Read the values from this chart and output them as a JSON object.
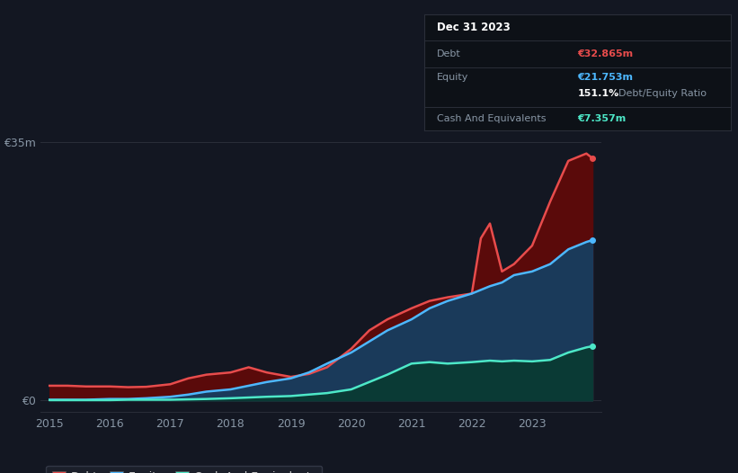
{
  "background_color": "#131722",
  "plot_bg_color": "#131722",
  "grid_color": "#2a2e39",
  "title_box": {
    "date": "Dec 31 2023",
    "debt_label": "Debt",
    "debt_value": "€32.865m",
    "equity_label": "Equity",
    "equity_value": "€21.753m",
    "ratio_text": "151.1% Debt/Equity Ratio",
    "cash_label": "Cash And Equivalents",
    "cash_value": "€7.357m",
    "debt_color": "#e84c4c",
    "equity_color": "#4db8ff",
    "cash_color": "#4de8c8",
    "label_color": "#8896a5",
    "date_color": "#ffffff",
    "ratio_color_bold": "#ffffff",
    "ratio_color_normal": "#8896a5",
    "box_bg": "#0d1117",
    "box_border": "#2a2e39"
  },
  "years": [
    2015.0,
    2015.3,
    2015.6,
    2016.0,
    2016.3,
    2016.6,
    2017.0,
    2017.3,
    2017.6,
    2018.0,
    2018.3,
    2018.6,
    2019.0,
    2019.3,
    2019.6,
    2020.0,
    2020.3,
    2020.6,
    2021.0,
    2021.3,
    2021.6,
    2022.0,
    2022.15,
    2022.3,
    2022.5,
    2022.7,
    2023.0,
    2023.3,
    2023.6,
    2023.9,
    2024.0
  ],
  "debt": [
    2.0,
    2.0,
    1.9,
    1.9,
    1.8,
    1.85,
    2.2,
    3.0,
    3.5,
    3.8,
    4.5,
    3.8,
    3.2,
    3.6,
    4.5,
    7.0,
    9.5,
    11.0,
    12.5,
    13.5,
    14.0,
    14.5,
    22.0,
    24.0,
    17.5,
    18.5,
    21.0,
    27.0,
    32.5,
    33.5,
    32.865
  ],
  "equity": [
    0.1,
    0.1,
    0.1,
    0.2,
    0.2,
    0.3,
    0.5,
    0.8,
    1.2,
    1.5,
    2.0,
    2.5,
    3.0,
    3.8,
    5.0,
    6.5,
    8.0,
    9.5,
    11.0,
    12.5,
    13.5,
    14.5,
    15.0,
    15.5,
    16.0,
    17.0,
    17.5,
    18.5,
    20.5,
    21.5,
    21.753
  ],
  "cash": [
    0.05,
    0.05,
    0.05,
    0.05,
    0.1,
    0.1,
    0.1,
    0.15,
    0.2,
    0.3,
    0.4,
    0.5,
    0.6,
    0.8,
    1.0,
    1.5,
    2.5,
    3.5,
    5.0,
    5.2,
    5.0,
    5.2,
    5.3,
    5.4,
    5.3,
    5.4,
    5.3,
    5.5,
    6.5,
    7.2,
    7.357
  ],
  "debt_color": "#e84c4c",
  "equity_color": "#4db8ff",
  "cash_color": "#4de8c8",
  "debt_fill": "#5a0a0a",
  "equity_fill": "#1a3a5a",
  "cash_fill": "#0a3a35",
  "ylim": [
    -1.5,
    37
  ],
  "ytick_labels": [
    "€0",
    "€35m"
  ],
  "ytick_vals": [
    0,
    35
  ],
  "xtick_labels": [
    "2015",
    "2016",
    "2017",
    "2018",
    "2019",
    "2020",
    "2021",
    "2022",
    "2023"
  ],
  "xtick_vals": [
    2015,
    2016,
    2017,
    2018,
    2019,
    2020,
    2021,
    2022,
    2023
  ],
  "legend_labels": [
    "Debt",
    "Equity",
    "Cash And Equivalents"
  ],
  "legend_colors": [
    "#e84c4c",
    "#4db8ff",
    "#4de8c8"
  ]
}
